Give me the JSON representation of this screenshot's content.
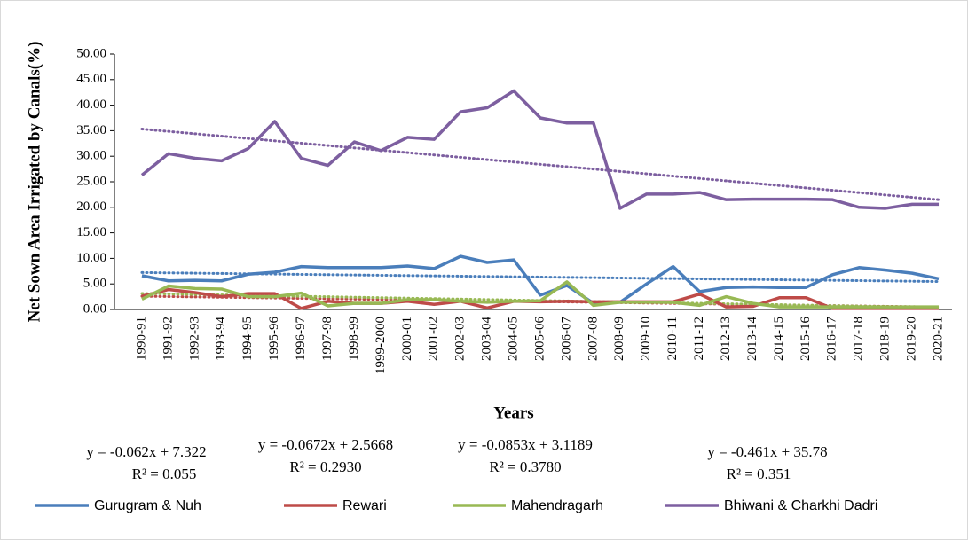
{
  "chart_data": {
    "type": "line",
    "y_label": "Net Sown Area Irrigated by Canals(%)",
    "x_label": "Years",
    "categories": [
      "1990-91",
      "1991-92",
      "1992-93",
      "1993-94",
      "1994-95",
      "1995-96",
      "1996-97",
      "1997-98",
      "1998-99",
      "1999-2000",
      "2000-01",
      "2001-02",
      "2002-03",
      "2003-04",
      "2004-05",
      "2005-06",
      "2006-07",
      "2007-08",
      "2008-09",
      "2009-10",
      "2010-11",
      "2011-12",
      "2012-13",
      "2013-14",
      "2014-15",
      "2015-16",
      "2016-17",
      "2017-18",
      "2018-19",
      "2019-20",
      "2020-21"
    ],
    "series": [
      {
        "name": "Gurugram & Nuh",
        "color": "#4a7ebb",
        "trendline": "linear",
        "values": [
          6.6,
          5.6,
          5.7,
          5.6,
          6.9,
          7.3,
          8.4,
          8.2,
          8.2,
          8.2,
          8.5,
          8.0,
          10.4,
          9.2,
          9.7,
          2.8,
          4.7,
          1.2,
          1.4,
          5.0,
          8.4,
          3.5,
          4.3,
          4.4,
          4.3,
          4.3,
          6.8,
          8.2,
          7.7,
          7.1,
          6.0
        ]
      },
      {
        "name": "Rewari",
        "color": "#be4b48",
        "trendline": "linear",
        "values": [
          2.6,
          3.9,
          3.3,
          2.5,
          3.1,
          3.1,
          0.2,
          1.6,
          1.2,
          1.2,
          1.6,
          1.0,
          1.6,
          0.3,
          1.6,
          1.5,
          1.6,
          1.5,
          1.5,
          1.5,
          1.5,
          3.0,
          0.5,
          0.6,
          2.3,
          2.3,
          0.2,
          0.2,
          0.2,
          0.2,
          0.2
        ]
      },
      {
        "name": "Mahendragarh",
        "color": "#98b954",
        "trendline": "linear",
        "values": [
          2.0,
          4.6,
          4.1,
          4.0,
          2.5,
          2.5,
          3.2,
          0.7,
          1.2,
          1.2,
          1.9,
          1.9,
          1.6,
          1.4,
          1.6,
          1.7,
          5.4,
          0.8,
          1.4,
          1.4,
          1.4,
          0.8,
          2.5,
          1.2,
          0.5,
          0.5,
          0.5,
          0.5,
          0.5,
          0.5,
          0.5
        ]
      },
      {
        "name": "Bhiwani & Charkhi Dadri",
        "color": "#7d5fa0",
        "trendline": "linear",
        "values": [
          26.3,
          30.5,
          29.6,
          29.1,
          31.5,
          36.8,
          29.6,
          28.2,
          32.8,
          31.1,
          33.7,
          33.3,
          38.7,
          39.5,
          42.8,
          37.5,
          36.5,
          36.5,
          19.8,
          22.6,
          22.6,
          22.9,
          21.5,
          21.6,
          21.6,
          21.6,
          21.5,
          20.0,
          19.8,
          20.6,
          20.6
        ]
      }
    ],
    "ylim": [
      0,
      50
    ],
    "yticks": [
      {
        "value": 0,
        "label": "0.00"
      },
      {
        "value": 5,
        "label": "5.00"
      },
      {
        "value": 10,
        "label": "10.00"
      },
      {
        "value": 15,
        "label": "15.00"
      },
      {
        "value": 20,
        "label": "20.00"
      },
      {
        "value": 25,
        "label": "25.00"
      },
      {
        "value": 30,
        "label": "30.00"
      },
      {
        "value": 35,
        "label": "35.00"
      },
      {
        "value": 40,
        "label": "40.00"
      },
      {
        "value": 45,
        "label": "45.00"
      },
      {
        "value": 50,
        "label": "50.00"
      }
    ],
    "annotations": [
      {
        "equation": "y = -0.062x + 7.322",
        "r2": "R² = 0.055"
      },
      {
        "equation": "y = -0.0672x + 2.5668",
        "r2": "R² = 0.2930"
      },
      {
        "equation": "y = -0.0853x + 3.1189",
        "r2": "R² = 0.3780"
      },
      {
        "equation": "y = -0.461x + 35.78",
        "r2": "R² = 0.351"
      }
    ],
    "legend": "bottom",
    "grid": false
  }
}
